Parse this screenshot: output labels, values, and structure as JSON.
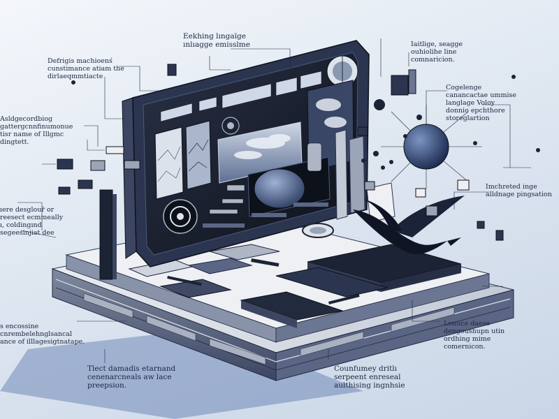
{
  "colors": {
    "background_top": "#f4f7fb",
    "background_bottom": "#c9d6e7",
    "ink": "#1c2740",
    "device_dark": "#12161f",
    "device_frame": "#2b3550",
    "accent_blue": "#3a5a9a",
    "base_light": "#dfe3ea",
    "base_mid": "#9aa5b8"
  },
  "annotations": [
    {
      "id": "top-center",
      "lines": [
        "Eekhing lıngaïge",
        "ınlıagge emisslme"
      ]
    },
    {
      "id": "top-right",
      "lines": [
        "Iaitlige, seagge",
        "ouhiolihe line",
        "comnaricion."
      ]
    },
    {
      "id": "upper-left",
      "lines": [
        "Defrigis machioenś",
        "cunstimance atiam the",
        "dirlaeqmmtiacte"
      ]
    },
    {
      "id": "left-1",
      "lines": [
        "Asldgecordbiog",
        "gattergcnnfinumonue",
        "tisr name of Illgmc",
        "dingtett."
      ]
    },
    {
      "id": "right-1",
      "lines": [
        "Cogelenge",
        "canancactae ummise",
        "langlage Voloy",
        "donnio epchthore",
        "storeglartion"
      ]
    },
    {
      "id": "right-2",
      "lines": [
        "Imchreted inge",
        "alldnage pingsation"
      ]
    },
    {
      "id": "left-2",
      "lines": [
        "ıere desglour̄ or",
        "reesect ecmmeally",
        "ı, coldingınd",
        "segeesinjiat dee"
      ]
    },
    {
      "id": "left-3",
      "lines": [
        "s encossine",
        "cnrembelehnglsancal",
        "ance of illlagesigtnatape."
      ]
    },
    {
      "id": "right-3",
      "lines": [
        "Lonuce daese",
        "dengoushupn utin",
        "ordhing mime",
        "comernicon."
      ]
    },
    {
      "id": "bottom-left",
      "lines": [
        "Tlect damadis etarnand",
        "cenenarcneals aw lace",
        "preepsion."
      ]
    },
    {
      "id": "bottom-center",
      "lines": [
        "Counfumey dritlı",
        "serpeent enreseal",
        "aulthising ingnhsie"
      ]
    }
  ],
  "scene_objects": {
    "tablet": "tablet-device",
    "base": "layered-platform",
    "bird": "bird-silhouette",
    "sphere": "floating-sphere",
    "lens": "lens-icon",
    "target": "target-icon"
  }
}
